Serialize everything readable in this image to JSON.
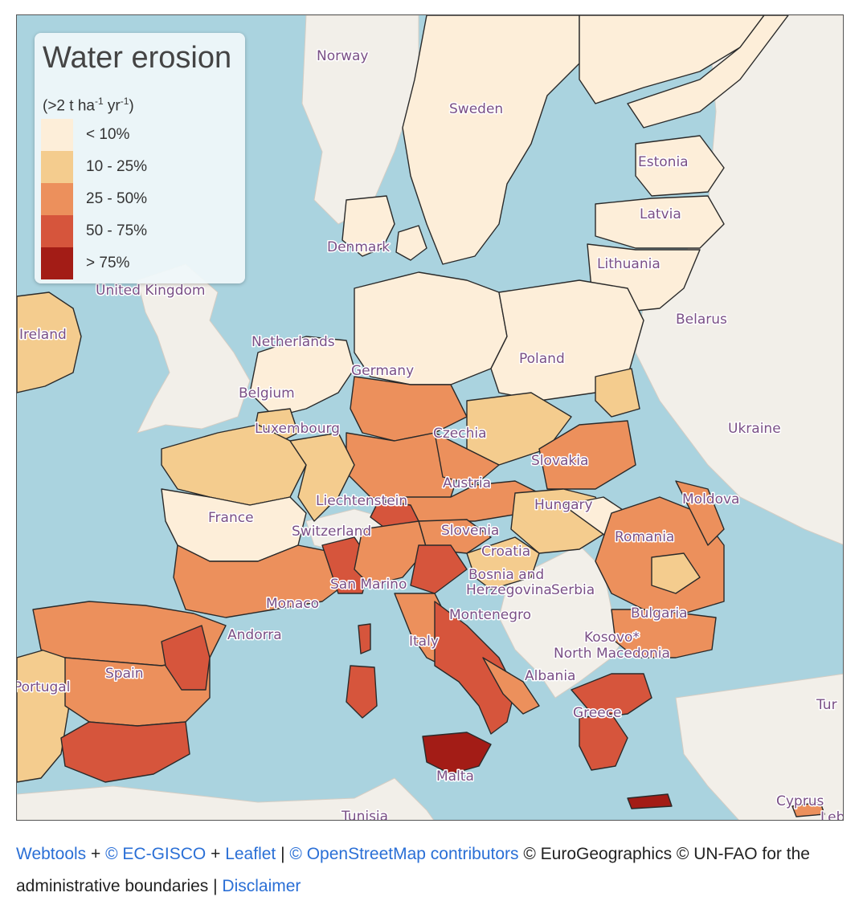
{
  "legend": {
    "title": "Water erosion",
    "unit": {
      "base": "(>2 t ha",
      "exp1": "-1",
      "mid": " yr",
      "exp2": "-1",
      "end": ")"
    },
    "classes": [
      {
        "label": "< 10%",
        "color": "#fdeed9"
      },
      {
        "label": "10 - 25%",
        "color": "#f4cc8e"
      },
      {
        "label": "25 - 50%",
        "color": "#ec905c"
      },
      {
        "label": "50 - 75%",
        "color": "#d6553c"
      },
      {
        "label": "> 75%",
        "color": "#a31c16"
      }
    ]
  },
  "map": {
    "sea_color": "#aad3df",
    "land_color": "#f2efe9",
    "labels": {
      "norway": "Norway",
      "sweden": "Sweden",
      "estonia": "Estonia",
      "latvia": "Latvia",
      "lithuania": "Lithuania",
      "denmark": "Denmark",
      "united_kingdom": "United Kingdom",
      "ireland": "Ireland",
      "belarus": "Belarus",
      "netherlands": "Netherlands",
      "poland": "Poland",
      "germany": "Germany",
      "belgium": "Belgium",
      "luxembourg": "Luxembourg",
      "czechia": "Czechia",
      "ukraine": "Ukraine",
      "slovakia": "Slovakia",
      "austria": "Austria",
      "moldova": "Moldova",
      "liechtenstein": "Liechtenstein",
      "hungary": "Hungary",
      "france": "France",
      "switzerland": "Switzerland",
      "slovenia": "Slovenia",
      "romania": "Romania",
      "croatia": "Croatia",
      "san_marino": "San Marino",
      "bosnia1": "Bosnia and",
      "bosnia2": "Herzegovina",
      "serbia": "Serbia",
      "monaco": "Monaco",
      "montenegro": "Montenegro",
      "bulgaria": "Bulgaria",
      "andorra": "Andorra",
      "kosovo": "Kosovo*",
      "italy": "Italy",
      "north_macedonia": "North Macedonia",
      "spain": "Spain",
      "portugal": "Portugal",
      "albania": "Albania",
      "greece": "Greece",
      "turkey": "Tur",
      "malta": "Malta",
      "tunisia": "Tunisia",
      "cyprus": "Cyprus",
      "lebanon": "Leb"
    }
  },
  "attribution": {
    "webtools": "Webtools",
    "plus1": " + ",
    "ecgisco": "© EC-GISCO",
    "plus2": " + ",
    "leaflet": "Leaflet",
    "sep1": " | ",
    "osm": "© OpenStreetMap contributors",
    "text": " © EuroGeographics © UN-FAO for the administrative boundaries",
    "sep2": " | ",
    "disclaimer": "Disclaimer"
  }
}
